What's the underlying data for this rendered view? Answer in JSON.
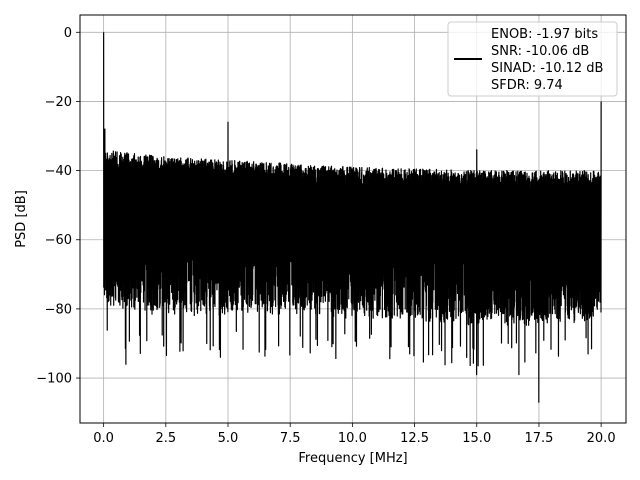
{
  "chart_data": {
    "type": "line",
    "title": "",
    "xlabel": "Frequency [MHz]",
    "ylabel": "PSD [dB]",
    "xlim": [
      -0.95,
      21.0
    ],
    "ylim": [
      -113,
      5
    ],
    "x_ticks": [
      0.0,
      2.5,
      5.0,
      7.5,
      10.0,
      12.5,
      15.0,
      17.5,
      20.0
    ],
    "x_tick_labels": [
      "0.0",
      "2.5",
      "5.0",
      "7.5",
      "10.0",
      "12.5",
      "15.0",
      "17.5",
      "20.0"
    ],
    "y_ticks": [
      0,
      -20,
      -40,
      -60,
      -80,
      -100
    ],
    "y_tick_labels": [
      "0",
      "−20",
      "−40",
      "−60",
      "−80",
      "−100"
    ],
    "grid": true,
    "legend_position": "top-right",
    "series": [
      {
        "name": "ENOB: -1.97 bits\nSNR: -10.06 dB\nSINAD: -10.12 dB\nSFDR: 9.74",
        "legend_lines": [
          "ENOB: -1.97 bits",
          "SNR: -10.06 dB",
          "SINAD: -10.12 dB",
          "SFDR: 9.74"
        ],
        "color": "#000000",
        "spikes": [
          {
            "x": 0.0,
            "y": 0
          },
          {
            "x": 0.05,
            "y": -28
          },
          {
            "x": 5.0,
            "y": -26
          },
          {
            "x": 15.0,
            "y": -34
          },
          {
            "x": 20.0,
            "y": -20
          }
        ],
        "noise_envelope": {
          "x": [
            0.0,
            2.5,
            5.0,
            7.5,
            10.0,
            12.5,
            15.0,
            17.5,
            20.0
          ],
          "upper": [
            -34,
            -36,
            -37,
            -38,
            -39,
            -39.5,
            -40,
            -40,
            -40
          ],
          "lower": [
            -80,
            -82,
            -82,
            -82,
            -83,
            -84,
            -85,
            -85,
            -84
          ]
        },
        "deep_nulls": [
          {
            "x": 0.9,
            "y": -96
          },
          {
            "x": 4.7,
            "y": -94
          },
          {
            "x": 12.3,
            "y": -93
          },
          {
            "x": 15.0,
            "y": -99
          },
          {
            "x": 16.7,
            "y": -99
          },
          {
            "x": 17.5,
            "y": -107
          }
        ]
      }
    ]
  }
}
